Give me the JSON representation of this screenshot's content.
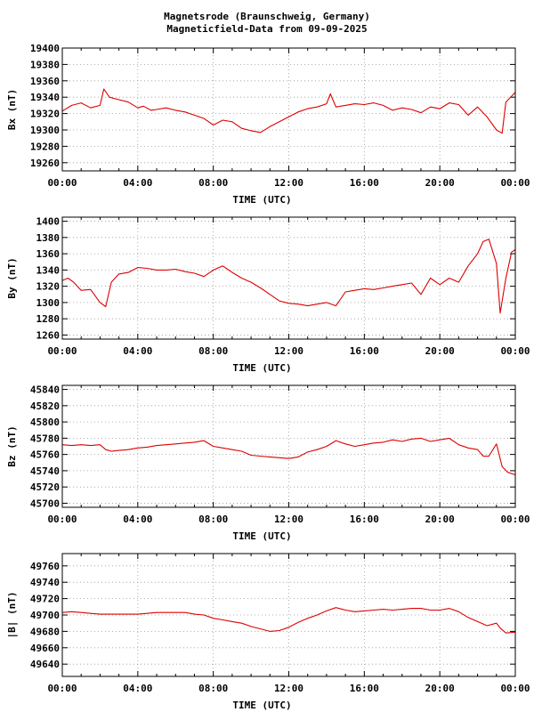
{
  "title_line1": "Magnetsrode (Braunschweig, Germany)",
  "title_line2": "Magneticfield-Data from 09-09-2025",
  "chart_data": [
    {
      "type": "line",
      "xlabel": "TIME (UTC)",
      "ylabel": "Bx (nT)",
      "x_ticks": [
        "00:00",
        "04:00",
        "08:00",
        "12:00",
        "16:00",
        "20:00",
        "00:00"
      ],
      "xlim": [
        0,
        24
      ],
      "ylim": [
        19250,
        19400
      ],
      "y_ticks": [
        19260,
        19280,
        19300,
        19320,
        19340,
        19360,
        19380,
        19400
      ],
      "grid": true,
      "color": "#dd0000",
      "x": [
        0,
        0.5,
        1,
        1.5,
        2,
        2.2,
        2.5,
        3,
        3.5,
        4,
        4.3,
        4.7,
        5,
        5.5,
        6,
        6.5,
        7,
        7.5,
        8,
        8.5,
        9,
        9.5,
        10,
        10.5,
        11,
        11.5,
        12,
        12.5,
        13,
        13.5,
        14,
        14.2,
        14.5,
        15,
        15.5,
        16,
        16.5,
        17,
        17.5,
        18,
        18.5,
        19,
        19.5,
        20,
        20.5,
        21,
        21.5,
        22,
        22.5,
        23,
        23.3,
        23.5,
        24
      ],
      "values": [
        19323,
        19330,
        19333,
        19327,
        19330,
        19350,
        19340,
        19337,
        19334,
        19327,
        19329,
        19324,
        19325,
        19327,
        19324,
        19322,
        19318,
        19314,
        19306,
        19312,
        19310,
        19302,
        19299,
        19297,
        19304,
        19310,
        19316,
        19322,
        19326,
        19328,
        19332,
        19344,
        19328,
        19330,
        19332,
        19331,
        19333,
        19330,
        19324,
        19327,
        19325,
        19321,
        19328,
        19326,
        19333,
        19331,
        19318,
        19328,
        19316,
        19300,
        19296,
        19334,
        19346
      ]
    },
    {
      "type": "line",
      "xlabel": "TIME (UTC)",
      "ylabel": "By (nT)",
      "x_ticks": [
        "00:00",
        "04:00",
        "08:00",
        "12:00",
        "16:00",
        "20:00",
        "00:00"
      ],
      "xlim": [
        0,
        24
      ],
      "ylim": [
        1255,
        1405
      ],
      "y_ticks": [
        1260,
        1280,
        1300,
        1320,
        1340,
        1360,
        1380,
        1400
      ],
      "grid": true,
      "color": "#dd0000",
      "x": [
        0,
        0.3,
        0.6,
        1,
        1.5,
        2,
        2.3,
        2.6,
        3,
        3.5,
        4,
        4.5,
        5,
        5.5,
        6,
        6.5,
        7,
        7.5,
        8,
        8.5,
        9,
        9.5,
        10,
        10.5,
        11,
        11.5,
        12,
        12.5,
        13,
        13.5,
        14,
        14.5,
        15,
        15.5,
        16,
        16.5,
        17,
        17.5,
        18,
        18.5,
        19,
        19.5,
        20,
        20.5,
        21,
        21.5,
        22,
        22.3,
        22.6,
        23,
        23.2,
        23.5,
        23.8,
        24
      ],
      "values": [
        1327,
        1330,
        1325,
        1315,
        1316,
        1300,
        1295,
        1325,
        1335,
        1337,
        1343,
        1342,
        1340,
        1340,
        1341,
        1338,
        1336,
        1332,
        1340,
        1345,
        1337,
        1330,
        1325,
        1318,
        1310,
        1302,
        1299,
        1298,
        1296,
        1298,
        1300,
        1296,
        1313,
        1315,
        1317,
        1316,
        1318,
        1320,
        1322,
        1324,
        1310,
        1330,
        1322,
        1330,
        1325,
        1345,
        1360,
        1375,
        1378,
        1348,
        1287,
        1330,
        1362,
        1365
      ]
    },
    {
      "type": "line",
      "xlabel": "TIME (UTC)",
      "ylabel": "Bz (nT)",
      "x_ticks": [
        "00:00",
        "04:00",
        "08:00",
        "12:00",
        "16:00",
        "20:00",
        "00:00"
      ],
      "xlim": [
        0,
        24
      ],
      "ylim": [
        45695,
        45845
      ],
      "y_ticks": [
        45700,
        45720,
        45740,
        45760,
        45780,
        45800,
        45820,
        45840
      ],
      "grid": true,
      "color": "#dd0000",
      "x": [
        0,
        0.5,
        1,
        1.5,
        2,
        2.3,
        2.6,
        3,
        3.5,
        4,
        4.5,
        5,
        5.5,
        6,
        6.5,
        7,
        7.5,
        8,
        8.5,
        9,
        9.5,
        10,
        10.5,
        11,
        11.5,
        12,
        12.5,
        13,
        13.5,
        14,
        14.5,
        15,
        15.5,
        16,
        16.5,
        17,
        17.5,
        18,
        18.5,
        19,
        19.5,
        20,
        20.5,
        21,
        21.5,
        22,
        22.3,
        22.6,
        23,
        23.3,
        23.6,
        24
      ],
      "values": [
        45772,
        45771,
        45772,
        45771,
        45772,
        45766,
        45764,
        45765,
        45766,
        45768,
        45769,
        45771,
        45772,
        45773,
        45774,
        45775,
        45777,
        45770,
        45768,
        45766,
        45764,
        45759,
        45758,
        45757,
        45756,
        45755,
        45757,
        45763,
        45766,
        45770,
        45777,
        45773,
        45770,
        45772,
        45774,
        45775,
        45778,
        45776,
        45779,
        45780,
        45776,
        45778,
        45780,
        45772,
        45768,
        45766,
        45758,
        45758,
        45773,
        45745,
        45738,
        45735
      ]
    },
    {
      "type": "line",
      "xlabel": "TIME (UTC)",
      "ylabel": "|B| (nT)",
      "x_ticks": [
        "00:00",
        "04:00",
        "08:00",
        "12:00",
        "16:00",
        "20:00",
        "00:00"
      ],
      "xlim": [
        0,
        24
      ],
      "ylim": [
        49625,
        49775
      ],
      "y_ticks": [
        49640,
        49660,
        49680,
        49700,
        49720,
        49740,
        49760
      ],
      "grid": true,
      "color": "#dd0000",
      "x": [
        0,
        0.5,
        1,
        1.5,
        2,
        2.5,
        3,
        3.5,
        4,
        4.5,
        5,
        5.5,
        6,
        6.5,
        7,
        7.5,
        8,
        8.5,
        9,
        9.5,
        10,
        10.5,
        11,
        11.5,
        12,
        12.5,
        13,
        13.5,
        14,
        14.5,
        15,
        15.5,
        16,
        16.5,
        17,
        17.5,
        18,
        18.5,
        19,
        19.5,
        20,
        20.5,
        21,
        21.5,
        22,
        22.5,
        23,
        23.2,
        23.5,
        24
      ],
      "values": [
        49703,
        49704,
        49703,
        49702,
        49701,
        49701,
        49701,
        49701,
        49701,
        49702,
        49703,
        49703,
        49703,
        49703,
        49701,
        49700,
        49696,
        49694,
        49692,
        49690,
        49686,
        49683,
        49680,
        49681,
        49685,
        49691,
        49696,
        49700,
        49705,
        49709,
        49706,
        49704,
        49705,
        49706,
        49707,
        49706,
        49707,
        49708,
        49708,
        49706,
        49706,
        49708,
        49704,
        49697,
        49692,
        49687,
        49690,
        49684,
        49678,
        49679
      ]
    }
  ]
}
